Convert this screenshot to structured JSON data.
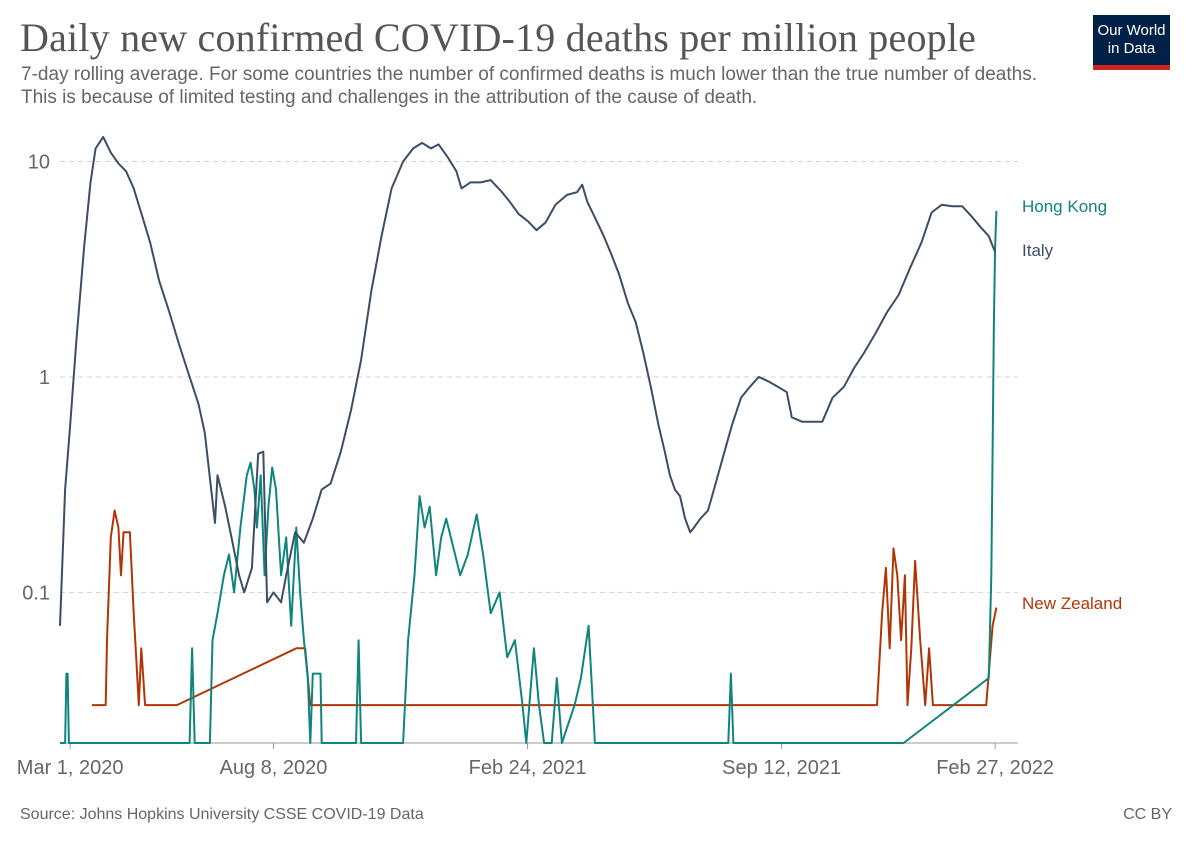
{
  "header": {
    "title": "Daily new confirmed COVID-19 deaths per million people",
    "subtitle": "7-day rolling average. For some countries the number of confirmed deaths is much lower than the true number of deaths. This is because of limited testing and challenges in the attribution of the cause of death."
  },
  "logo": {
    "line1": "Our World",
    "line2": "in Data"
  },
  "footer": {
    "source": "Source: Johns Hopkins University CSSE COVID-19 Data",
    "license": "CC BY"
  },
  "chart_data": {
    "type": "line",
    "title": "Daily new confirmed COVID-19 deaths per million people",
    "xlabel": "",
    "ylabel": "",
    "yscale": "log",
    "ylim": [
      0.02,
      14
    ],
    "xlim": [
      "2020-02-22",
      "2022-03-17"
    ],
    "grid": true,
    "y_ticks": [
      {
        "value": 0.1,
        "label": "0.1"
      },
      {
        "value": 1,
        "label": "1"
      },
      {
        "value": 10,
        "label": "10"
      }
    ],
    "x_ticks": [
      {
        "date": "2020-03-01",
        "label": "Mar 1, 2020"
      },
      {
        "date": "2020-08-08",
        "label": "Aug 8, 2020"
      },
      {
        "date": "2021-02-24",
        "label": "Feb 24, 2021"
      },
      {
        "date": "2021-09-12",
        "label": "Sep 12, 2021"
      },
      {
        "date": "2022-02-27",
        "label": "Feb 27, 2022"
      }
    ],
    "legend": "end-of-line labels",
    "series": [
      {
        "name": "Italy",
        "label": "Italy",
        "color": "#3c4e66",
        "points": [
          [
            "2020-02-22",
            0.07
          ],
          [
            "2020-02-26",
            0.3
          ],
          [
            "2020-03-01",
            0.6
          ],
          [
            "2020-03-06",
            1.5
          ],
          [
            "2020-03-12",
            4.0
          ],
          [
            "2020-03-17",
            8.0
          ],
          [
            "2020-03-21",
            11.5
          ],
          [
            "2020-03-27",
            13.0
          ],
          [
            "2020-04-02",
            11.0
          ],
          [
            "2020-04-08",
            9.8
          ],
          [
            "2020-04-14",
            9.0
          ],
          [
            "2020-04-20",
            7.5
          ],
          [
            "2020-04-27",
            5.5
          ],
          [
            "2020-05-03",
            4.2
          ],
          [
            "2020-05-10",
            2.8
          ],
          [
            "2020-05-18",
            2.0
          ],
          [
            "2020-05-26",
            1.4
          ],
          [
            "2020-06-03",
            1.0
          ],
          [
            "2020-06-10",
            0.75
          ],
          [
            "2020-06-15",
            0.55
          ],
          [
            "2020-06-20",
            0.3
          ],
          [
            "2020-06-23",
            0.21
          ],
          [
            "2020-06-25",
            0.35
          ],
          [
            "2020-07-01",
            0.25
          ],
          [
            "2020-07-06",
            0.18
          ],
          [
            "2020-07-12",
            0.12
          ],
          [
            "2020-07-16",
            0.1
          ],
          [
            "2020-07-22",
            0.13
          ],
          [
            "2020-07-27",
            0.44
          ],
          [
            "2020-07-31",
            0.45
          ],
          [
            "2020-08-03",
            0.09
          ],
          [
            "2020-08-08",
            0.1
          ],
          [
            "2020-08-14",
            0.09
          ],
          [
            "2020-08-18",
            0.12
          ],
          [
            "2020-08-25",
            0.19
          ],
          [
            "2020-09-01",
            0.17
          ],
          [
            "2020-09-08",
            0.22
          ],
          [
            "2020-09-15",
            0.3
          ],
          [
            "2020-09-22",
            0.32
          ],
          [
            "2020-09-30",
            0.45
          ],
          [
            "2020-10-08",
            0.7
          ],
          [
            "2020-10-16",
            1.2
          ],
          [
            "2020-10-24",
            2.5
          ],
          [
            "2020-11-01",
            4.5
          ],
          [
            "2020-11-09",
            7.5
          ],
          [
            "2020-11-18",
            10.0
          ],
          [
            "2020-11-26",
            11.5
          ],
          [
            "2020-12-03",
            12.2
          ],
          [
            "2020-12-10",
            11.5
          ],
          [
            "2020-12-16",
            12.0
          ],
          [
            "2020-12-23",
            10.5
          ],
          [
            "2020-12-30",
            9.0
          ],
          [
            "2021-01-03",
            7.5
          ],
          [
            "2021-01-10",
            8.0
          ],
          [
            "2021-01-18",
            8.0
          ],
          [
            "2021-01-26",
            8.2
          ],
          [
            "2021-02-03",
            7.3
          ],
          [
            "2021-02-10",
            6.5
          ],
          [
            "2021-02-17",
            5.7
          ],
          [
            "2021-02-24",
            5.3
          ],
          [
            "2021-03-03",
            4.8
          ],
          [
            "2021-03-10",
            5.2
          ],
          [
            "2021-03-18",
            6.3
          ],
          [
            "2021-03-27",
            7.0
          ],
          [
            "2021-04-04",
            7.2
          ],
          [
            "2021-04-08",
            7.8
          ],
          [
            "2021-04-12",
            6.5
          ],
          [
            "2021-04-18",
            5.5
          ],
          [
            "2021-04-25",
            4.5
          ],
          [
            "2021-05-01",
            3.7
          ],
          [
            "2021-05-07",
            3.0
          ],
          [
            "2021-05-14",
            2.2
          ],
          [
            "2021-05-20",
            1.8
          ],
          [
            "2021-05-26",
            1.3
          ],
          [
            "2021-06-01",
            0.9
          ],
          [
            "2021-06-07",
            0.6
          ],
          [
            "2021-06-12",
            0.45
          ],
          [
            "2021-06-16",
            0.35
          ],
          [
            "2021-06-20",
            0.3
          ],
          [
            "2021-06-24",
            0.28
          ],
          [
            "2021-06-28",
            0.22
          ],
          [
            "2021-07-02",
            0.19
          ],
          [
            "2021-07-05",
            0.2
          ],
          [
            "2021-07-10",
            0.22
          ],
          [
            "2021-07-16",
            0.24
          ],
          [
            "2021-07-22",
            0.32
          ],
          [
            "2021-07-29",
            0.45
          ],
          [
            "2021-08-04",
            0.6
          ],
          [
            "2021-08-11",
            0.8
          ],
          [
            "2021-08-18",
            0.9
          ],
          [
            "2021-08-25",
            1.0
          ],
          [
            "2021-09-02",
            0.95
          ],
          [
            "2021-09-09",
            0.9
          ],
          [
            "2021-09-16",
            0.85
          ],
          [
            "2021-09-20",
            0.65
          ],
          [
            "2021-09-28",
            0.62
          ],
          [
            "2021-10-06",
            0.62
          ],
          [
            "2021-10-14",
            0.62
          ],
          [
            "2021-10-22",
            0.8
          ],
          [
            "2021-10-31",
            0.9
          ],
          [
            "2021-11-08",
            1.1
          ],
          [
            "2021-11-16",
            1.3
          ],
          [
            "2021-11-25",
            1.6
          ],
          [
            "2021-12-04",
            2.0
          ],
          [
            "2021-12-13",
            2.4
          ],
          [
            "2021-12-22",
            3.2
          ],
          [
            "2021-12-31",
            4.2
          ],
          [
            "2022-01-08",
            5.8
          ],
          [
            "2022-01-16",
            6.3
          ],
          [
            "2022-01-24",
            6.2
          ],
          [
            "2022-02-01",
            6.2
          ],
          [
            "2022-02-08",
            5.6
          ],
          [
            "2022-02-15",
            5.0
          ],
          [
            "2022-02-22",
            4.5
          ],
          [
            "2022-02-27",
            3.8
          ]
        ]
      },
      {
        "name": "Hong Kong",
        "label": "Hong Kong",
        "color": "#10857d",
        "points": [
          [
            "2020-02-22",
            0.02
          ],
          [
            "2020-02-26",
            0.02
          ],
          [
            "2020-02-27",
            0.042
          ],
          [
            "2020-02-28",
            0.042
          ],
          [
            "2020-02-29",
            0.02
          ],
          [
            "2020-06-03",
            0.02
          ],
          [
            "2020-06-05",
            0.055
          ],
          [
            "2020-06-07",
            0.02
          ],
          [
            "2020-06-19",
            0.02
          ],
          [
            "2020-06-21",
            0.06
          ],
          [
            "2020-06-25",
            0.08
          ],
          [
            "2020-06-30",
            0.12
          ],
          [
            "2020-07-04",
            0.15
          ],
          [
            "2020-07-08",
            0.1
          ],
          [
            "2020-07-13",
            0.2
          ],
          [
            "2020-07-18",
            0.35
          ],
          [
            "2020-07-21",
            0.4
          ],
          [
            "2020-07-24",
            0.3
          ],
          [
            "2020-07-26",
            0.2
          ],
          [
            "2020-07-29",
            0.35
          ],
          [
            "2020-08-01",
            0.12
          ],
          [
            "2020-08-04",
            0.25
          ],
          [
            "2020-08-07",
            0.38
          ],
          [
            "2020-08-10",
            0.3
          ],
          [
            "2020-08-14",
            0.12
          ],
          [
            "2020-08-18",
            0.18
          ],
          [
            "2020-08-22",
            0.07
          ],
          [
            "2020-08-26",
            0.2
          ],
          [
            "2020-08-29",
            0.1
          ],
          [
            "2020-09-01",
            0.06
          ],
          [
            "2020-09-04",
            0.04
          ],
          [
            "2020-09-06",
            0.02
          ],
          [
            "2020-09-08",
            0.042
          ],
          [
            "2020-09-14",
            0.042
          ],
          [
            "2020-09-15",
            0.02
          ],
          [
            "2020-10-12",
            0.02
          ],
          [
            "2020-10-14",
            0.06
          ],
          [
            "2020-10-16",
            0.02
          ],
          [
            "2020-11-18",
            0.02
          ],
          [
            "2020-11-22",
            0.06
          ],
          [
            "2020-11-27",
            0.12
          ],
          [
            "2020-12-01",
            0.28
          ],
          [
            "2020-12-05",
            0.2
          ],
          [
            "2020-12-09",
            0.25
          ],
          [
            "2020-12-14",
            0.12
          ],
          [
            "2020-12-18",
            0.18
          ],
          [
            "2020-12-22",
            0.22
          ],
          [
            "2021-01-02",
            0.12
          ],
          [
            "2021-01-08",
            0.15
          ],
          [
            "2021-01-15",
            0.23
          ],
          [
            "2021-01-20",
            0.15
          ],
          [
            "2021-01-26",
            0.08
          ],
          [
            "2021-02-02",
            0.1
          ],
          [
            "2021-02-08",
            0.05
          ],
          [
            "2021-02-14",
            0.06
          ],
          [
            "2021-02-20",
            0.03
          ],
          [
            "2021-02-23",
            0.02
          ],
          [
            "2021-03-01",
            0.055
          ],
          [
            "2021-03-05",
            0.03
          ],
          [
            "2021-03-09",
            0.02
          ],
          [
            "2021-03-15",
            0.02
          ],
          [
            "2021-03-19",
            0.04
          ],
          [
            "2021-03-23",
            0.02
          ],
          [
            "2021-04-02",
            0.03
          ],
          [
            "2021-04-07",
            0.04
          ],
          [
            "2021-04-13",
            0.07
          ],
          [
            "2021-04-18",
            0.02
          ],
          [
            "2021-08-01",
            0.02
          ],
          [
            "2021-08-03",
            0.042
          ],
          [
            "2021-08-05",
            0.02
          ],
          [
            "2021-12-17",
            0.02
          ],
          [
            "2022-02-22",
            0.04
          ],
          [
            "2022-02-24",
            0.12
          ],
          [
            "2022-02-25",
            0.45
          ],
          [
            "2022-02-26",
            1.8
          ],
          [
            "2022-02-27",
            4.0
          ],
          [
            "2022-02-28",
            5.9
          ]
        ]
      },
      {
        "name": "New Zealand",
        "label": "New Zealand",
        "color": "#b13507",
        "points": [
          [
            "2020-03-18",
            0.03
          ],
          [
            "2020-03-29",
            0.03
          ],
          [
            "2020-03-30",
            0.06
          ],
          [
            "2020-04-02",
            0.18
          ],
          [
            "2020-04-05",
            0.24
          ],
          [
            "2020-04-08",
            0.2
          ],
          [
            "2020-04-10",
            0.12
          ],
          [
            "2020-04-12",
            0.19
          ],
          [
            "2020-04-17",
            0.19
          ],
          [
            "2020-04-20",
            0.08
          ],
          [
            "2020-04-22",
            0.05
          ],
          [
            "2020-04-24",
            0.03
          ],
          [
            "2020-04-26",
            0.055
          ],
          [
            "2020-04-29",
            0.03
          ],
          [
            "2020-05-24",
            0.03
          ],
          [
            "2020-08-26",
            0.055
          ],
          [
            "2020-09-02",
            0.055
          ],
          [
            "2020-09-06",
            0.03
          ],
          [
            "2021-11-26",
            0.03
          ],
          [
            "2021-11-30",
            0.08
          ],
          [
            "2021-12-03",
            0.13
          ],
          [
            "2021-12-06",
            0.055
          ],
          [
            "2021-12-09",
            0.16
          ],
          [
            "2021-12-12",
            0.12
          ],
          [
            "2021-12-15",
            0.06
          ],
          [
            "2021-12-18",
            0.12
          ],
          [
            "2021-12-20",
            0.03
          ],
          [
            "2021-12-23",
            0.055
          ],
          [
            "2021-12-26",
            0.14
          ],
          [
            "2021-12-30",
            0.06
          ],
          [
            "2022-01-03",
            0.03
          ],
          [
            "2022-01-06",
            0.055
          ],
          [
            "2022-01-09",
            0.03
          ],
          [
            "2022-02-20",
            0.03
          ],
          [
            "2022-02-25",
            0.07
          ],
          [
            "2022-02-28",
            0.085
          ]
        ]
      }
    ]
  }
}
